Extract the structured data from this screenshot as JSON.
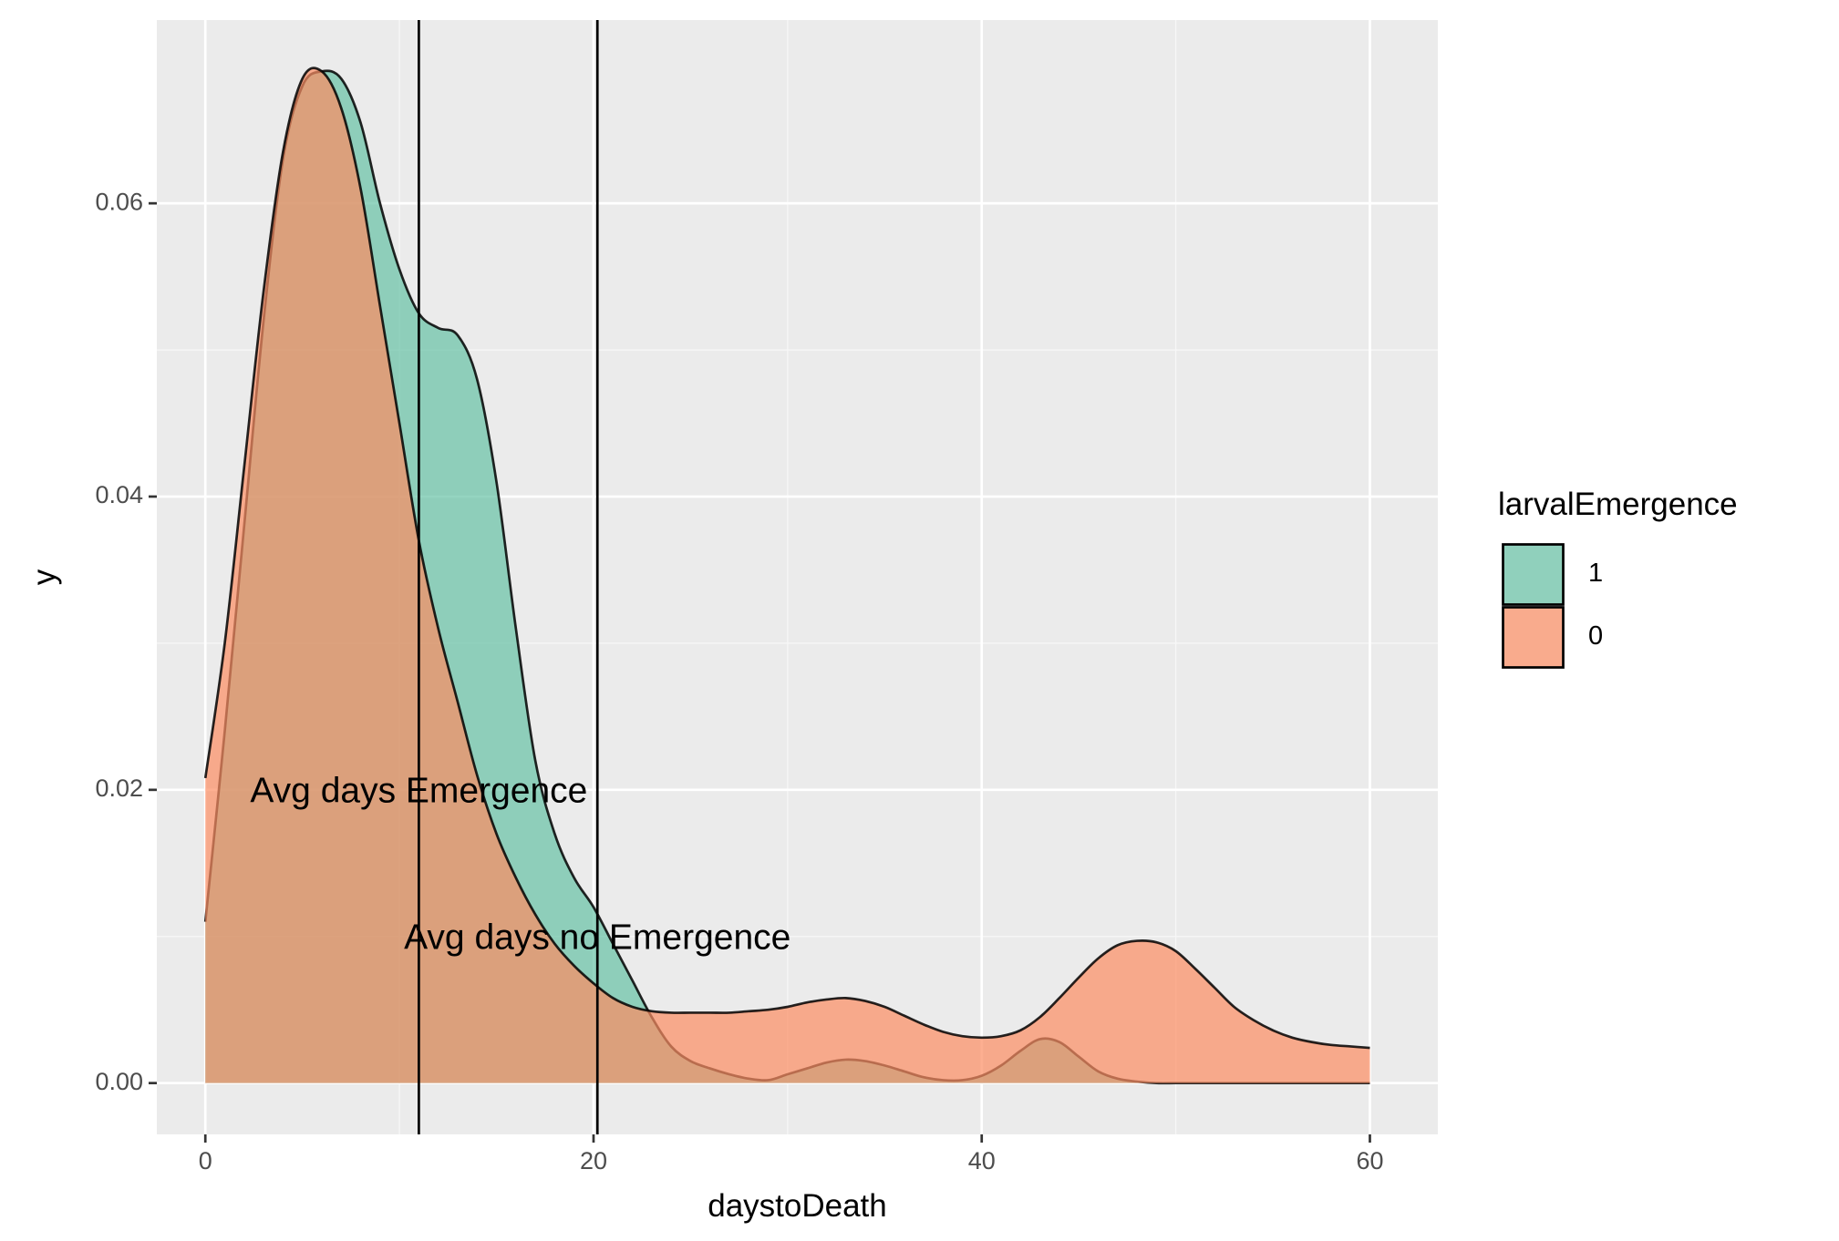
{
  "chart_data": {
    "type": "area",
    "title": "",
    "xlabel": "daystoDeath",
    "ylabel": "y",
    "xlim": [
      -2.5,
      63.5
    ],
    "ylim": [
      -0.0035,
      0.0725
    ],
    "xticks": [
      0,
      20,
      40,
      60
    ],
    "xtick_labels": [
      "0",
      "20",
      "40",
      "60"
    ],
    "yticks": [
      0,
      0.02,
      0.04,
      0.06
    ],
    "ytick_labels": [
      "0.00",
      "0.02",
      "0.04",
      "0.06"
    ],
    "grid": true,
    "background": "#ebebeb",
    "legend": {
      "title": "larvalEmergence",
      "position": "right",
      "entries": [
        {
          "label": "1",
          "color": "#66c2a5"
        },
        {
          "label": "0",
          "color": "#fc8d62"
        }
      ]
    },
    "series": [
      {
        "name": "1",
        "color": "#66c2a5",
        "opacity": 0.7,
        "x": [
          0,
          1,
          2,
          3,
          4,
          5,
          6,
          7,
          8,
          9,
          10,
          11,
          12,
          13,
          14,
          15,
          16,
          17,
          18,
          19,
          20,
          21,
          22,
          23,
          24,
          25,
          26,
          27,
          28,
          29,
          30,
          31,
          32,
          33,
          34,
          35,
          36,
          37,
          38,
          39,
          40,
          41,
          42,
          43,
          44,
          45,
          46,
          47,
          48,
          49,
          50,
          51,
          52,
          53,
          54,
          55,
          56,
          57,
          58,
          59,
          60
        ],
        "y": [
          0.011,
          0.024,
          0.038,
          0.052,
          0.063,
          0.068,
          0.069,
          0.0685,
          0.0655,
          0.06,
          0.0555,
          0.0525,
          0.0515,
          0.051,
          0.048,
          0.041,
          0.031,
          0.022,
          0.017,
          0.014,
          0.012,
          0.0095,
          0.007,
          0.0045,
          0.0025,
          0.0015,
          0.001,
          0.0006,
          0.0003,
          0.0002,
          0.0006,
          0.001,
          0.0014,
          0.0016,
          0.0015,
          0.0012,
          0.0008,
          0.0004,
          0.0002,
          0.0002,
          0.0005,
          0.0012,
          0.0022,
          0.003,
          0.0028,
          0.0018,
          0.0008,
          0.0003,
          0.0001,
          0.0,
          0.0,
          0.0,
          0.0,
          0.0,
          0.0,
          0.0,
          0.0,
          0.0,
          0.0,
          0.0,
          0.0
        ]
      },
      {
        "name": "0",
        "color": "#fc8d62",
        "opacity": 0.7,
        "x": [
          0,
          1,
          2,
          3,
          4,
          5,
          6,
          7,
          8,
          9,
          10,
          11,
          12,
          13,
          14,
          15,
          16,
          17,
          18,
          19,
          20,
          21,
          22,
          23,
          24,
          25,
          26,
          27,
          28,
          29,
          30,
          31,
          32,
          33,
          34,
          35,
          36,
          37,
          38,
          39,
          40,
          41,
          42,
          43,
          44,
          45,
          46,
          47,
          48,
          49,
          50,
          51,
          52,
          53,
          54,
          55,
          56,
          57,
          58,
          59,
          60
        ],
        "y": [
          0.0208,
          0.03,
          0.042,
          0.054,
          0.0635,
          0.0685,
          0.069,
          0.0665,
          0.061,
          0.053,
          0.045,
          0.037,
          0.031,
          0.026,
          0.021,
          0.017,
          0.014,
          0.0115,
          0.0095,
          0.008,
          0.0068,
          0.0058,
          0.0052,
          0.0049,
          0.0048,
          0.0048,
          0.0048,
          0.0048,
          0.0049,
          0.005,
          0.0052,
          0.0055,
          0.0057,
          0.0058,
          0.0056,
          0.0052,
          0.0046,
          0.004,
          0.0035,
          0.0032,
          0.0031,
          0.0032,
          0.0036,
          0.0045,
          0.0058,
          0.0072,
          0.0085,
          0.0094,
          0.0097,
          0.0096,
          0.009,
          0.0078,
          0.0065,
          0.0052,
          0.0043,
          0.0036,
          0.0031,
          0.0028,
          0.0026,
          0.0025,
          0.0024
        ]
      }
    ],
    "vlines": [
      11,
      20.2
    ],
    "annotations": [
      {
        "text": "Avg days Emergence",
        "x": 11,
        "y": 0.0198
      },
      {
        "text": "Avg days no Emergence",
        "x": 20.2,
        "y": 0.0098
      }
    ]
  }
}
